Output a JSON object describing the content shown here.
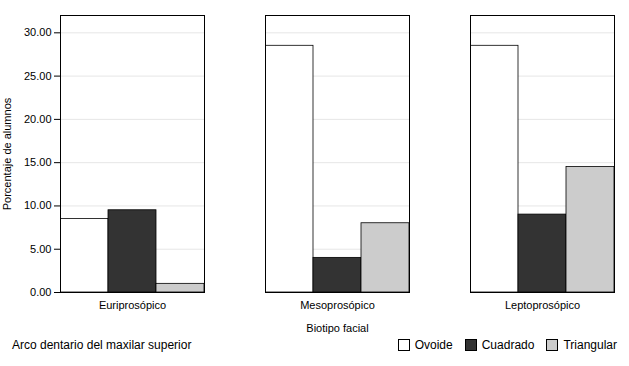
{
  "chart_data": {
    "type": "bar",
    "categories": [
      "Euriprosópico",
      "Mesoprosópico",
      "Leptoprosópico"
    ],
    "series": [
      {
        "name": "Ovoide",
        "color": "#FFFFFF",
        "values": [
          8.5,
          28.5,
          28.5
        ]
      },
      {
        "name": "Cuadrado",
        "color": "#333333",
        "values": [
          9.5,
          4.0,
          9.0
        ]
      },
      {
        "name": "Triangular",
        "color": "#CCCCCC",
        "values": [
          1.0,
          8.0,
          14.5
        ]
      }
    ],
    "xlabel": "Biotipo facial",
    "ylabel": "Porcentaje de alumnos",
    "legend_title": "Arco dentario del maxilar superior",
    "ylim": [
      0,
      32
    ],
    "yticks": [
      {
        "value": 0,
        "label": "0.00"
      },
      {
        "value": 5,
        "label": "5.00"
      },
      {
        "value": 10,
        "label": "10.00"
      },
      {
        "value": 15,
        "label": "15.00"
      },
      {
        "value": 20,
        "label": "20.00"
      },
      {
        "value": 25,
        "label": "25.00"
      },
      {
        "value": 30,
        "label": "30.00"
      }
    ],
    "grid": true,
    "legend": "bottom"
  }
}
